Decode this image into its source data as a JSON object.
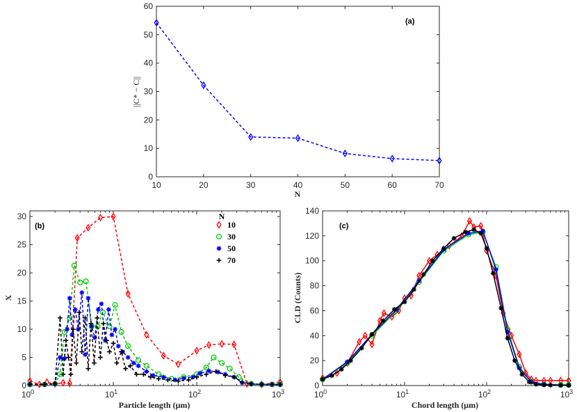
{
  "colors": {
    "blue": "#0000ff",
    "red": "#ff0000",
    "green": "#00cc00",
    "black": "#000000",
    "axis": "#262626"
  },
  "chart_data": [
    {
      "type": "line",
      "panel": "(a)",
      "xlabel": "N",
      "ylabel": "||C* − C||",
      "xlim": [
        10,
        70
      ],
      "ylim": [
        0,
        60
      ],
      "xticks": [
        "10",
        "20",
        "30",
        "40",
        "50",
        "60",
        "70"
      ],
      "yticks": [
        "0",
        "10",
        "20",
        "30",
        "40",
        "50",
        "60"
      ],
      "x": [
        10,
        20,
        30,
        40,
        50,
        60,
        70
      ],
      "values": [
        54.2,
        32.2,
        14.0,
        13.6,
        8.2,
        6.4,
        5.7
      ],
      "marker": "diamond",
      "line_style": "dashed",
      "color": "#0000ff"
    },
    {
      "type": "line",
      "panel": "(b)",
      "xlabel": "Particle length (μm)",
      "ylabel": "X",
      "xscale": "log",
      "xlim": [
        1,
        1000
      ],
      "ylim": [
        0,
        31
      ],
      "xticks": [
        "10^0",
        "10^1",
        "10^2",
        "10^3"
      ],
      "yticks": [
        "0",
        "5",
        "10",
        "15",
        "20",
        "25",
        "30"
      ],
      "legend_title": "N",
      "legend_position": "top-right",
      "series": [
        {
          "name": "10",
          "color": "#ff0000",
          "marker": "diamond",
          "x": [
            1,
            1.3,
            1.6,
            2.0,
            2.5,
            3.0,
            3.7,
            5.0,
            7.0,
            10.0,
            15.0,
            25.0,
            40.0,
            60.0,
            100.0,
            140.0,
            200.0,
            280.0,
            400.0,
            600.0,
            1000.0
          ],
          "values": [
            0.8,
            0.2,
            0.6,
            0.3,
            0.5,
            0.4,
            26.2,
            28.0,
            29.8,
            30.0,
            16.3,
            9.0,
            5.3,
            3.8,
            6.2,
            7.2,
            7.4,
            7.3,
            0.3,
            0.2,
            0.6
          ]
        },
        {
          "name": "30",
          "color": "#00cc00",
          "marker": "circle",
          "x": [
            1,
            1.5,
            2.0,
            2.3,
            2.6,
            3.0,
            3.4,
            4.0,
            4.7,
            5.5,
            6.5,
            7.5,
            9.0,
            10.5,
            12.5,
            15.0,
            20.0,
            25.0,
            35.0,
            50.0,
            70.0,
            100.0,
            130.0,
            160.0,
            200.0,
            250.0,
            320.0,
            450.0,
            600.0,
            800.0,
            1000.0
          ],
          "values": [
            0.2,
            0.2,
            0.3,
            2.0,
            9.5,
            12.0,
            21.3,
            18.3,
            18.5,
            10.5,
            10.5,
            13.0,
            10.5,
            14.3,
            9.5,
            7.0,
            4.5,
            3.5,
            2.0,
            1.2,
            1.5,
            2.0,
            3.2,
            5.0,
            4.0,
            3.0,
            1.5,
            0.3,
            0.2,
            0.2,
            0.2
          ]
        },
        {
          "name": "50",
          "color": "#0000ff",
          "marker": "asterisk",
          "x": [
            1,
            1.5,
            2.0,
            2.3,
            2.6,
            2.8,
            3.0,
            3.2,
            3.5,
            3.8,
            4.2,
            4.6,
            5.0,
            5.5,
            6.0,
            6.6,
            7.2,
            8.0,
            8.8,
            9.6,
            10.5,
            11.5,
            13.0,
            15.0,
            17.5,
            20.0,
            25.0,
            30.0,
            40.0,
            55.0,
            70.0,
            90.0,
            110.0,
            140.0,
            180.0,
            220.0,
            280.0,
            350.0,
            450.0,
            600.0,
            800.0,
            1000.0
          ],
          "values": [
            0.2,
            0.2,
            0.3,
            5.0,
            4.8,
            10.0,
            15.5,
            9.0,
            13.5,
            10.0,
            16.5,
            5.5,
            15.5,
            10.5,
            8.5,
            13.5,
            14.5,
            8.0,
            13.5,
            9.0,
            10.0,
            7.0,
            6.0,
            5.0,
            4.0,
            3.5,
            2.5,
            1.8,
            1.5,
            1.0,
            1.3,
            1.5,
            2.2,
            2.6,
            2.4,
            2.0,
            1.5,
            0.5,
            0.3,
            0.2,
            0.2,
            0.2
          ]
        },
        {
          "name": "70",
          "color": "#000000",
          "marker": "plus",
          "x": [
            1,
            1.5,
            2.0,
            2.3,
            2.5,
            2.7,
            2.9,
            3.1,
            3.3,
            3.6,
            3.9,
            4.2,
            4.6,
            5.0,
            5.4,
            5.9,
            6.4,
            7.0,
            7.6,
            8.3,
            9.0,
            10.0,
            11.0,
            12.5,
            14.0,
            16.0,
            19.0,
            23.0,
            28.0,
            35.0,
            45.0,
            60.0,
            80.0,
            100.0,
            130.0,
            170.0,
            220.0,
            280.0,
            350.0,
            450.0,
            600.0,
            800.0,
            1000.0
          ],
          "values": [
            0.2,
            0.2,
            0.3,
            12.0,
            2.0,
            8.0,
            5.0,
            2.0,
            10.0,
            4.0,
            13.0,
            6.0,
            12.0,
            3.0,
            11.0,
            4.0,
            12.0,
            5.0,
            11.0,
            8.0,
            6.0,
            7.5,
            4.0,
            6.0,
            3.0,
            3.5,
            2.0,
            2.0,
            1.5,
            1.2,
            1.0,
            0.8,
            1.0,
            1.5,
            2.0,
            2.5,
            1.8,
            1.5,
            0.6,
            0.3,
            0.2,
            0.2,
            0.2
          ]
        }
      ]
    },
    {
      "type": "line",
      "panel": "(c)",
      "xlabel": "Chord length (μm)",
      "ylabel": "CLD (Counts)",
      "xscale": "log",
      "xlim": [
        1,
        1000
      ],
      "ylim": [
        0,
        140
      ],
      "xticks": [
        "10^0",
        "10^1",
        "10^2",
        "10^3"
      ],
      "yticks": [
        "0",
        "20",
        "40",
        "60",
        "80",
        "100",
        "120",
        "140"
      ],
      "series": [
        {
          "color": "#000000",
          "marker": "star",
          "x": [
            1.0,
            1.3,
            1.7,
            2.2,
            3.0,
            4.0,
            5.5,
            7.5,
            10.0,
            13.0,
            17.0,
            22.0,
            30.0,
            40.0,
            55.0,
            70.0,
            85.0,
            100.0,
            120.0,
            150.0,
            180.0,
            220.0,
            270.0,
            330.0,
            400.0,
            500.0,
            600.0,
            800.0,
            1000.0
          ],
          "values": [
            5,
            8,
            13,
            20,
            30,
            41,
            52,
            61,
            67,
            77,
            89,
            100,
            110,
            118,
            123,
            125,
            122,
            110,
            90,
            62,
            38,
            20,
            9,
            3,
            1,
            0.5,
            0.3,
            0.2,
            0.2
          ]
        },
        {
          "color": "#ff0000",
          "marker": "diamond",
          "x": [
            1.0,
            1.5,
            2.0,
            2.8,
            3.3,
            4.0,
            5.0,
            5.6,
            7.0,
            8.5,
            10.0,
            12.0,
            15.0,
            20.0,
            25.0,
            35.0,
            50.0,
            62.0,
            70.0,
            85.0,
            100.0,
            130.0,
            160.0,
            200.0,
            250.0,
            300.0,
            350.0,
            400.0,
            500.0,
            600.0,
            800.0,
            1000.0
          ],
          "values": [
            6,
            10,
            18,
            35,
            40,
            33,
            52,
            58,
            55,
            60,
            70,
            72,
            88,
            100,
            105,
            112,
            120,
            132,
            127,
            128,
            108,
            88,
            58,
            40,
            25,
            10,
            5,
            4,
            4,
            4,
            4,
            4
          ]
        },
        {
          "color": "#00cc00",
          "marker": "circle",
          "x": [
            1.0,
            2.0,
            4.0,
            8.0,
            15.0,
            30.0,
            60.0,
            90.0,
            130.0,
            180.0,
            250.0,
            350.0,
            500.0,
            800.0,
            1000.0
          ],
          "values": [
            5,
            18,
            40,
            60,
            83,
            108,
            121,
            123,
            95,
            45,
            15,
            3,
            1,
            0.5,
            0.5
          ]
        },
        {
          "color": "#0000ff",
          "marker": "asterisk",
          "x": [
            1.0,
            2.0,
            4.0,
            8.0,
            15.0,
            30.0,
            60.0,
            90.0,
            130.0,
            180.0,
            250.0,
            350.0,
            500.0,
            800.0,
            1000.0
          ],
          "values": [
            5,
            19,
            41,
            61,
            84,
            109,
            122,
            124,
            93,
            43,
            14,
            3,
            1,
            0.4,
            0.3
          ]
        }
      ]
    }
  ]
}
